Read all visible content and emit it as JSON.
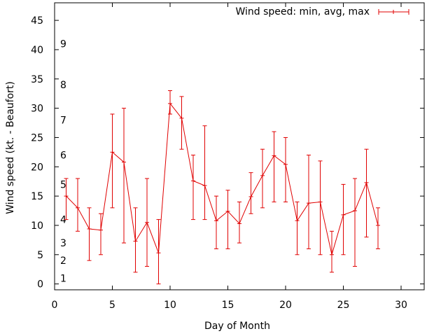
{
  "chart_data": {
    "type": "line-errorbar",
    "title": "",
    "xlabel": "Day of Month",
    "ylabel": "Wind speed (kt. - Beaufort)",
    "xlim": [
      0,
      32
    ],
    "ylim": [
      -1,
      48
    ],
    "xticks": [
      "0",
      "5",
      "10",
      "15",
      "20",
      "25",
      "30"
    ],
    "yticks": [
      "0",
      "5",
      "10",
      "15",
      "20",
      "25",
      "30",
      "35",
      "40",
      "45"
    ],
    "beaufort_labels": [
      {
        "label": "1",
        "at": 1
      },
      {
        "label": "2",
        "at": 4
      },
      {
        "label": "3",
        "at": 7
      },
      {
        "label": "4",
        "at": 11
      },
      {
        "label": "5",
        "at": 17
      },
      {
        "label": "6",
        "at": 22
      },
      {
        "label": "7",
        "at": 28
      },
      {
        "label": "8",
        "at": 34
      },
      {
        "label": "9",
        "at": 41
      }
    ],
    "legend": {
      "label": "Wind speed: min, avg, max",
      "position": "top-right"
    },
    "color": "#e00000",
    "series": [
      {
        "name": "Wind speed: min, avg, max",
        "x": [
          1,
          2,
          3,
          4,
          5,
          6,
          7,
          8,
          9,
          10,
          11,
          12,
          13,
          14,
          15,
          16,
          17,
          18,
          19,
          20,
          21,
          22,
          23,
          24,
          25,
          26,
          27,
          28
        ],
        "avg": [
          15,
          13,
          9.4,
          9.2,
          22.5,
          20.8,
          7.3,
          10.5,
          5.3,
          30.8,
          28.3,
          17.6,
          16.8,
          10.8,
          12.4,
          10.3,
          14.9,
          18.5,
          21.9,
          20.4,
          10.8,
          13.8,
          14,
          5,
          11.8,
          12.5,
          17.3,
          10
        ],
        "min": [
          11,
          9,
          4,
          5,
          13,
          7,
          2,
          3,
          0,
          29,
          23,
          11,
          11,
          6,
          6,
          7,
          12,
          13,
          14,
          14,
          5,
          6,
          5,
          2,
          5,
          3,
          8,
          6
        ],
        "max": [
          18,
          18,
          13,
          12,
          29,
          30,
          13,
          18,
          11,
          33,
          32,
          22,
          27,
          15,
          16,
          14,
          19,
          23,
          26,
          25,
          14,
          22,
          21,
          9,
          17,
          18,
          23,
          13
        ]
      }
    ]
  }
}
